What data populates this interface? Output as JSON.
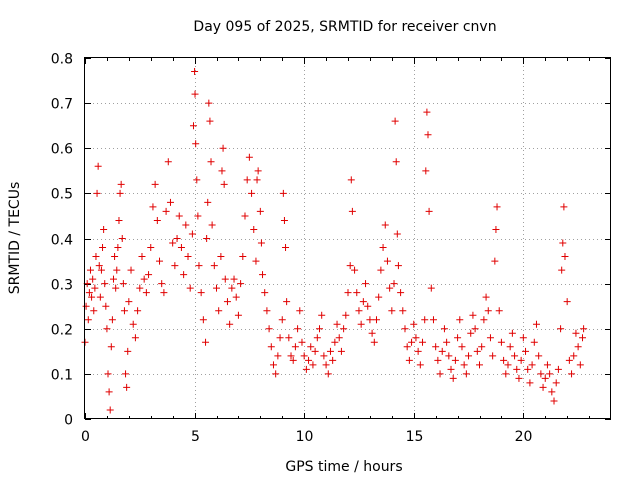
{
  "chart_data": {
    "type": "scatter",
    "title": "Day 095 of 2025, SRMTID for receiver cnvn",
    "xlabel": "GPS time / hours",
    "ylabel": "SRMTID / TECUs",
    "xlim": [
      0,
      24
    ],
    "ylim": [
      0,
      0.8
    ],
    "xticks": [
      0,
      5,
      10,
      15,
      20
    ],
    "xtick_labels": [
      "0",
      "5",
      "10",
      "15",
      "20"
    ],
    "yticks": [
      0,
      0.1,
      0.2,
      0.3,
      0.4,
      0.5,
      0.6,
      0.7,
      0.8
    ],
    "ytick_labels": [
      "0",
      "0.1",
      "0.2",
      "0.3",
      "0.4",
      "0.5",
      "0.6",
      "0.7",
      "0.8"
    ],
    "grid": true,
    "marker": "plus",
    "color": "#e00000",
    "series": [
      {
        "name": "SRMTID",
        "points": [
          [
            0.0,
            0.17
          ],
          [
            0.05,
            0.25
          ],
          [
            0.1,
            0.3
          ],
          [
            0.15,
            0.22
          ],
          [
            0.2,
            0.28
          ],
          [
            0.25,
            0.33
          ],
          [
            0.3,
            0.27
          ],
          [
            0.35,
            0.31
          ],
          [
            0.4,
            0.24
          ],
          [
            0.45,
            0.29
          ],
          [
            0.5,
            0.36
          ],
          [
            0.55,
            0.5
          ],
          [
            0.6,
            0.56
          ],
          [
            0.65,
            0.34
          ],
          [
            0.7,
            0.27
          ],
          [
            0.75,
            0.33
          ],
          [
            0.8,
            0.38
          ],
          [
            0.85,
            0.42
          ],
          [
            0.9,
            0.3
          ],
          [
            0.95,
            0.25
          ],
          [
            1.0,
            0.2
          ],
          [
            1.05,
            0.1
          ],
          [
            1.1,
            0.06
          ],
          [
            1.15,
            0.02
          ],
          [
            1.2,
            0.16
          ],
          [
            1.25,
            0.22
          ],
          [
            1.3,
            0.31
          ],
          [
            1.35,
            0.36
          ],
          [
            1.4,
            0.29
          ],
          [
            1.45,
            0.33
          ],
          [
            1.5,
            0.38
          ],
          [
            1.55,
            0.44
          ],
          [
            1.6,
            0.5
          ],
          [
            1.65,
            0.52
          ],
          [
            1.7,
            0.4
          ],
          [
            1.75,
            0.3
          ],
          [
            1.8,
            0.24
          ],
          [
            1.85,
            0.1
          ],
          [
            1.9,
            0.07
          ],
          [
            1.95,
            0.15
          ],
          [
            2.0,
            0.26
          ],
          [
            2.1,
            0.33
          ],
          [
            2.2,
            0.21
          ],
          [
            2.3,
            0.18
          ],
          [
            2.4,
            0.24
          ],
          [
            2.5,
            0.29
          ],
          [
            2.6,
            0.36
          ],
          [
            2.7,
            0.31
          ],
          [
            2.8,
            0.28
          ],
          [
            2.9,
            0.32
          ],
          [
            3.0,
            0.38
          ],
          [
            3.1,
            0.47
          ],
          [
            3.2,
            0.52
          ],
          [
            3.3,
            0.44
          ],
          [
            3.4,
            0.35
          ],
          [
            3.5,
            0.3
          ],
          [
            3.6,
            0.28
          ],
          [
            3.7,
            0.46
          ],
          [
            3.8,
            0.57
          ],
          [
            3.9,
            0.48
          ],
          [
            4.0,
            0.39
          ],
          [
            4.1,
            0.34
          ],
          [
            4.2,
            0.4
          ],
          [
            4.3,
            0.45
          ],
          [
            4.4,
            0.38
          ],
          [
            4.5,
            0.32
          ],
          [
            4.6,
            0.43
          ],
          [
            4.7,
            0.36
          ],
          [
            4.8,
            0.29
          ],
          [
            4.9,
            0.41
          ],
          [
            4.95,
            0.65
          ],
          [
            5.0,
            0.77
          ],
          [
            5.02,
            0.72
          ],
          [
            5.05,
            0.61
          ],
          [
            5.1,
            0.53
          ],
          [
            5.15,
            0.45
          ],
          [
            5.2,
            0.34
          ],
          [
            5.3,
            0.28
          ],
          [
            5.4,
            0.22
          ],
          [
            5.5,
            0.17
          ],
          [
            5.55,
            0.4
          ],
          [
            5.6,
            0.48
          ],
          [
            5.65,
            0.7
          ],
          [
            5.7,
            0.66
          ],
          [
            5.75,
            0.57
          ],
          [
            5.8,
            0.43
          ],
          [
            5.9,
            0.34
          ],
          [
            6.0,
            0.29
          ],
          [
            6.1,
            0.24
          ],
          [
            6.2,
            0.36
          ],
          [
            6.25,
            0.55
          ],
          [
            6.3,
            0.6
          ],
          [
            6.35,
            0.52
          ],
          [
            6.4,
            0.31
          ],
          [
            6.5,
            0.26
          ],
          [
            6.6,
            0.21
          ],
          [
            6.7,
            0.29
          ],
          [
            6.8,
            0.31
          ],
          [
            6.9,
            0.27
          ],
          [
            7.0,
            0.23
          ],
          [
            7.1,
            0.3
          ],
          [
            7.2,
            0.36
          ],
          [
            7.3,
            0.45
          ],
          [
            7.4,
            0.53
          ],
          [
            7.5,
            0.58
          ],
          [
            7.6,
            0.5
          ],
          [
            7.7,
            0.42
          ],
          [
            7.8,
            0.35
          ],
          [
            7.85,
            0.53
          ],
          [
            7.9,
            0.55
          ],
          [
            8.0,
            0.46
          ],
          [
            8.05,
            0.39
          ],
          [
            8.1,
            0.32
          ],
          [
            8.2,
            0.28
          ],
          [
            8.3,
            0.24
          ],
          [
            8.4,
            0.2
          ],
          [
            8.5,
            0.16
          ],
          [
            8.6,
            0.12
          ],
          [
            8.7,
            0.1
          ],
          [
            8.8,
            0.14
          ],
          [
            8.9,
            0.18
          ],
          [
            9.0,
            0.22
          ],
          [
            9.05,
            0.5
          ],
          [
            9.1,
            0.44
          ],
          [
            9.15,
            0.38
          ],
          [
            9.2,
            0.26
          ],
          [
            9.3,
            0.18
          ],
          [
            9.4,
            0.14
          ],
          [
            9.5,
            0.13
          ],
          [
            9.6,
            0.16
          ],
          [
            9.7,
            0.2
          ],
          [
            9.8,
            0.24
          ],
          [
            9.9,
            0.17
          ],
          [
            10.0,
            0.14
          ],
          [
            10.1,
            0.11
          ],
          [
            10.2,
            0.13
          ],
          [
            10.3,
            0.16
          ],
          [
            10.4,
            0.12
          ],
          [
            10.5,
            0.15
          ],
          [
            10.6,
            0.18
          ],
          [
            10.7,
            0.2
          ],
          [
            10.8,
            0.23
          ],
          [
            10.9,
            0.14
          ],
          [
            11.0,
            0.12
          ],
          [
            11.1,
            0.1
          ],
          [
            11.2,
            0.15
          ],
          [
            11.3,
            0.13
          ],
          [
            11.4,
            0.17
          ],
          [
            11.5,
            0.21
          ],
          [
            11.6,
            0.18
          ],
          [
            11.7,
            0.15
          ],
          [
            11.8,
            0.2
          ],
          [
            11.9,
            0.23
          ],
          [
            12.0,
            0.28
          ],
          [
            12.1,
            0.34
          ],
          [
            12.15,
            0.53
          ],
          [
            12.2,
            0.46
          ],
          [
            12.3,
            0.33
          ],
          [
            12.4,
            0.28
          ],
          [
            12.5,
            0.24
          ],
          [
            12.6,
            0.21
          ],
          [
            12.7,
            0.26
          ],
          [
            12.8,
            0.3
          ],
          [
            12.9,
            0.25
          ],
          [
            13.0,
            0.22
          ],
          [
            13.1,
            0.19
          ],
          [
            13.2,
            0.17
          ],
          [
            13.3,
            0.22
          ],
          [
            13.4,
            0.27
          ],
          [
            13.5,
            0.33
          ],
          [
            13.6,
            0.38
          ],
          [
            13.7,
            0.43
          ],
          [
            13.8,
            0.35
          ],
          [
            13.9,
            0.29
          ],
          [
            14.0,
            0.24
          ],
          [
            14.1,
            0.3
          ],
          [
            14.15,
            0.66
          ],
          [
            14.2,
            0.57
          ],
          [
            14.25,
            0.41
          ],
          [
            14.3,
            0.34
          ],
          [
            14.4,
            0.28
          ],
          [
            14.5,
            0.24
          ],
          [
            14.6,
            0.2
          ],
          [
            14.7,
            0.16
          ],
          [
            14.8,
            0.13
          ],
          [
            14.9,
            0.17
          ],
          [
            15.0,
            0.21
          ],
          [
            15.1,
            0.18
          ],
          [
            15.2,
            0.15
          ],
          [
            15.3,
            0.12
          ],
          [
            15.4,
            0.17
          ],
          [
            15.5,
            0.22
          ],
          [
            15.55,
            0.55
          ],
          [
            15.6,
            0.68
          ],
          [
            15.65,
            0.63
          ],
          [
            15.7,
            0.46
          ],
          [
            15.8,
            0.29
          ],
          [
            15.9,
            0.22
          ],
          [
            16.0,
            0.16
          ],
          [
            16.1,
            0.13
          ],
          [
            16.2,
            0.1
          ],
          [
            16.3,
            0.15
          ],
          [
            16.4,
            0.2
          ],
          [
            16.5,
            0.17
          ],
          [
            16.6,
            0.14
          ],
          [
            16.7,
            0.11
          ],
          [
            16.8,
            0.09
          ],
          [
            16.9,
            0.13
          ],
          [
            17.0,
            0.18
          ],
          [
            17.1,
            0.22
          ],
          [
            17.2,
            0.16
          ],
          [
            17.3,
            0.12
          ],
          [
            17.4,
            0.1
          ],
          [
            17.5,
            0.14
          ],
          [
            17.6,
            0.19
          ],
          [
            17.7,
            0.23
          ],
          [
            17.8,
            0.2
          ],
          [
            17.9,
            0.15
          ],
          [
            18.0,
            0.12
          ],
          [
            18.1,
            0.16
          ],
          [
            18.2,
            0.22
          ],
          [
            18.3,
            0.27
          ],
          [
            18.4,
            0.24
          ],
          [
            18.5,
            0.18
          ],
          [
            18.6,
            0.14
          ],
          [
            18.7,
            0.35
          ],
          [
            18.75,
            0.42
          ],
          [
            18.8,
            0.47
          ],
          [
            18.9,
            0.24
          ],
          [
            19.0,
            0.17
          ],
          [
            19.1,
            0.13
          ],
          [
            19.2,
            0.1
          ],
          [
            19.3,
            0.12
          ],
          [
            19.4,
            0.16
          ],
          [
            19.5,
            0.19
          ],
          [
            19.6,
            0.14
          ],
          [
            19.7,
            0.11
          ],
          [
            19.8,
            0.09
          ],
          [
            19.9,
            0.13
          ],
          [
            20.0,
            0.18
          ],
          [
            20.1,
            0.15
          ],
          [
            20.2,
            0.11
          ],
          [
            20.3,
            0.08
          ],
          [
            20.4,
            0.12
          ],
          [
            20.5,
            0.17
          ],
          [
            20.6,
            0.21
          ],
          [
            20.7,
            0.14
          ],
          [
            20.8,
            0.1
          ],
          [
            20.9,
            0.07
          ],
          [
            21.0,
            0.09
          ],
          [
            21.1,
            0.12
          ],
          [
            21.2,
            0.1
          ],
          [
            21.3,
            0.06
          ],
          [
            21.4,
            0.04
          ],
          [
            21.5,
            0.08
          ],
          [
            21.6,
            0.11
          ],
          [
            21.7,
            0.2
          ],
          [
            21.75,
            0.33
          ],
          [
            21.8,
            0.39
          ],
          [
            21.85,
            0.47
          ],
          [
            21.9,
            0.36
          ],
          [
            22.0,
            0.26
          ],
          [
            22.1,
            0.13
          ],
          [
            22.2,
            0.1
          ],
          [
            22.3,
            0.14
          ],
          [
            22.4,
            0.19
          ],
          [
            22.5,
            0.16
          ],
          [
            22.6,
            0.12
          ],
          [
            22.7,
            0.18
          ],
          [
            22.75,
            0.2
          ]
        ]
      }
    ]
  }
}
